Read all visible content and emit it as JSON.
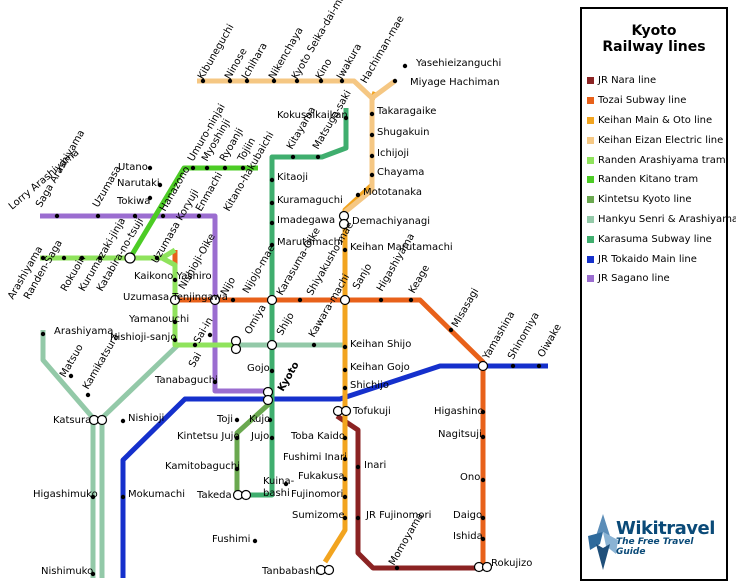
{
  "legend": {
    "title_line1": "Kyoto",
    "title_line2": "Railway lines",
    "items": [
      {
        "label": "JR Nara line",
        "color": "#8b2323"
      },
      {
        "label": "Tozai Subway line",
        "color": "#e8611a"
      },
      {
        "label": "Keihan Main & Oto line",
        "color": "#f2a41f"
      },
      {
        "label": "Keihan Eizan Electric line",
        "color": "#f5c783"
      },
      {
        "label": "Randen Arashiyama tram",
        "color": "#8fe35c"
      },
      {
        "label": "Randen Kitano tram",
        "color": "#4ccc25"
      },
      {
        "label": "Kintetsu Kyoto line",
        "color": "#6aa84f"
      },
      {
        "label": "Hankyu Senri & Arashiyama",
        "color": "#93c9a8"
      },
      {
        "label": "Karasuma Subway line",
        "color": "#3fae6e"
      },
      {
        "label": "JR Tokaido Main line",
        "color": "#1530cc"
      },
      {
        "label": "JR Sagano line",
        "color": "#9b6dd0"
      }
    ]
  },
  "brand": {
    "name": "Wikitravel",
    "tagline": "The Free Travel Guide",
    "icon": "wikitravel-compass-logo"
  },
  "stations": {
    "kibuneguchi": "Kibuneguchi",
    "ninose": "Ninose",
    "ichihara": "Ichihara",
    "nikenchaya": "Nikenchaya",
    "seika": "Kyoto Seika-dai-mae",
    "kino": "Kino",
    "iwakura": "Iwakura",
    "hachiman_mae": "Hachiman-mae",
    "yasehiei": "Yasehieizanguchi",
    "miyage": "Miyage Hachiman",
    "takaragaike": "Takaragaike",
    "shugakuin": "Shugakuin",
    "ichijoji": "Ichijoji",
    "chayama": "Chayama",
    "mototanaka": "Mototanaka",
    "demachi": "Demachiyanagi",
    "kokusai": "Kokusaikaikan",
    "kitayama": "Kitayama",
    "matsugasaki": "Matsuga-saki",
    "kitaoji": "Kitaoji",
    "kuramaguchi": "Kuramaguchi",
    "imadegawa": "Imadegawa",
    "marutamachi": "Marutamachi",
    "keihan_maruta": "Keihan Marutamachi",
    "lorry": "Lorry Arashiyama",
    "saga_arashiyama": "Saga Arashiyama",
    "uzumasa": "Uzumasa",
    "utano": "Utano",
    "umuro": "Umuro-ninjai",
    "myoshinji": "Myoshinji",
    "ryoanji": "Ryoanji",
    "tojiin": "Tojiin",
    "narutaki": "Narutaki",
    "tokiwa": "Tokiwa",
    "hanazono": "Hanazono",
    "enmachi": "Enmachi",
    "kitano": "Kitano-hakubaichi",
    "arashiyama_tram": "Arashiyama",
    "randen_saga": "Randen-Saga",
    "rokuoin": "Rokuoin",
    "kurumazaki": "Kurumazaki-jinja",
    "katabira": "Katabira-no-tsuji",
    "uzumasa_koryuji": "Uzumasa Koryuji",
    "kaikono": "Kaikono Yashiro",
    "uzumasa_ten": "Uzumasa Tenjingawa",
    "yamanouchi": "Yamanouchi",
    "nishioji_sanjo": "Nishioji-sanjo",
    "nishioji_oike": "Nishioji-Oike",
    "nijo": "Nijo",
    "nijojo": "Nijojo-mae",
    "karasuma_oike": "Karasuma-Oike",
    "shiyakusho": "Shiyakusho-mae",
    "sanjo": "Sanjo",
    "higashiyama": "Higashiyama",
    "keage": "Keage",
    "misasagi": "Misasagi",
    "yamashina": "Yamashina",
    "shinomiya": "Shinomiya",
    "oiwake": "Oiwake",
    "arashiyama_hankyu": "Arashiyama",
    "matsuo": "Matsuo",
    "kamikatsura": "Kamikatsura",
    "katsura": "Katsura",
    "higashimuko": "Higashimuko",
    "nishimuko": "Nishimuko",
    "sai": "Sai",
    "sai_in": "Sai-in",
    "omiya": "Omiya",
    "shijo": "Shijo",
    "kawaramachi": "Kawara-machi",
    "keihan_shijo": "Keihan Shijo",
    "gojo": "Gojo",
    "keihan_gojo": "Keihan Gojo",
    "shichijo": "Shichijo",
    "tanabaguchi": "Tanabaguchi",
    "kyoto": "Kyoto",
    "nishioji": "Nishioji",
    "tofukuji": "Tofukuji",
    "toji": "Toji",
    "kujo": "Kujo",
    "kintetsu_jujo": "Kintetsu Jujo",
    "jujo": "Jujo",
    "toba": "Toba Kaido",
    "fushimi_inari": "Fushimi Inari",
    "inari": "Inari",
    "kamitoba": "Kamitobaguchi",
    "fukakusa": "Fukakusa",
    "takeda": "Takeda",
    "kuinabashi": "Kuina-bashi",
    "fujinomori": "Fujinomori",
    "mokumachi": "Mokumachi",
    "sumizome": "Sumizome",
    "jr_fujinomori": "JR Fujinomori",
    "fushimi": "Fushimi",
    "tanbabashi": "Tanbabashi",
    "momoyama": "Momoyama",
    "higashino": "Higashino",
    "nagitsuji": "Nagitsuji",
    "ono": "Ono",
    "daigo": "Daigo",
    "ishida": "Ishida",
    "rokujizo": "Rokujizo"
  }
}
